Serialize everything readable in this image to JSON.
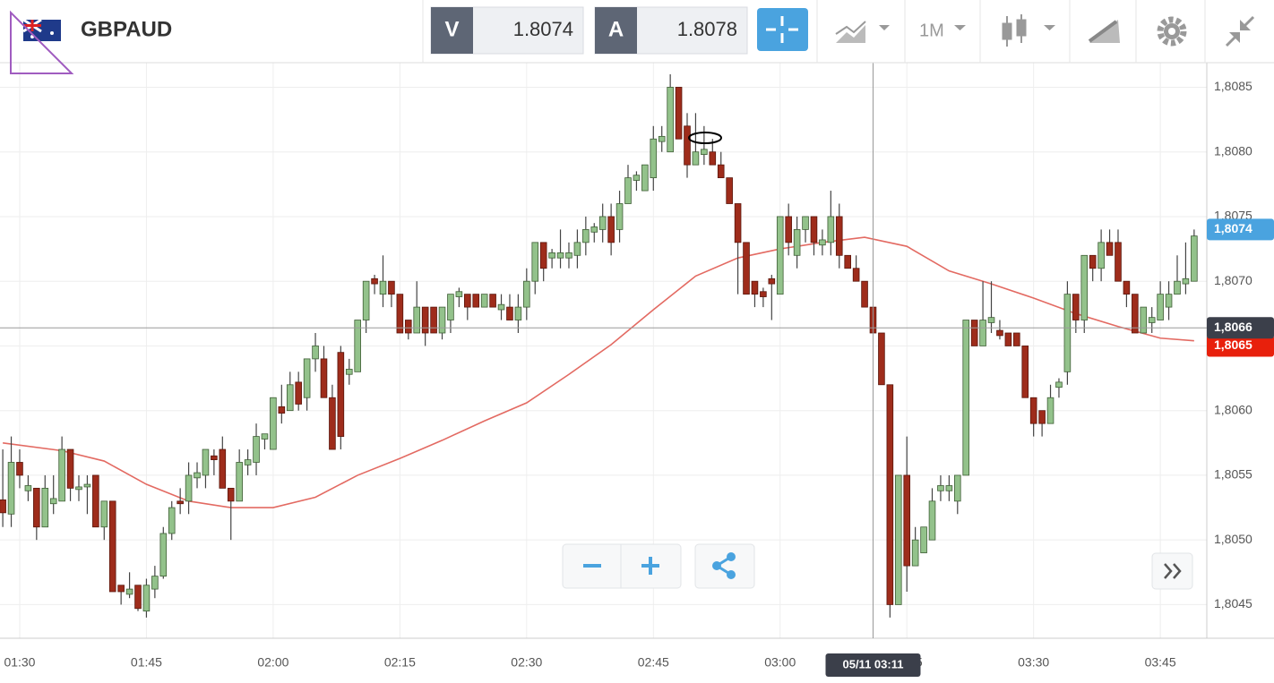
{
  "header": {
    "symbol": "GBPAUD",
    "bid_label": "V",
    "bid": 1.8074,
    "ask_label": "A",
    "ask": 1.8078,
    "timeframe": "1M"
  },
  "chart_data": {
    "type": "candlestick",
    "x": [
      88,
      89,
      90,
      91,
      92,
      93,
      94,
      95,
      96,
      97,
      98,
      99,
      100,
      101,
      102,
      103,
      104,
      105,
      106,
      107,
      108,
      109,
      110,
      111,
      112,
      113,
      114,
      115,
      116,
      117,
      118,
      119,
      120,
      121,
      122,
      123,
      124,
      125,
      126,
      127,
      128,
      129,
      130,
      131,
      132,
      133,
      134,
      135,
      136,
      137,
      138,
      139,
      140,
      141,
      142,
      143,
      144,
      145,
      146,
      147,
      148,
      149,
      150,
      151,
      152,
      153,
      154,
      155,
      156,
      157,
      158,
      159,
      160,
      161,
      162,
      163,
      164,
      165,
      166,
      167,
      168,
      169,
      170,
      171,
      172,
      173,
      174,
      175,
      176,
      177,
      178,
      179,
      180,
      181,
      182,
      183,
      184,
      185,
      186,
      187,
      188,
      189,
      190,
      191,
      192,
      193,
      194,
      195,
      196,
      197,
      198,
      199,
      200,
      201,
      202,
      203,
      204,
      205,
      206,
      207,
      208,
      209,
      210,
      211,
      212,
      213,
      214,
      215,
      216,
      217,
      218,
      219,
      220,
      221,
      222,
      223,
      224,
      225,
      226,
      227,
      228,
      229
    ],
    "open": [
      1.80531,
      1.8052,
      1.8056,
      1.80538,
      1.8054,
      1.8051,
      1.80528,
      1.8053,
      1.8057,
      1.80539,
      1.80541,
      1.8055,
      1.8051,
      1.8053,
      1.80465,
      1.80458,
      1.80465,
      1.80445,
      1.80462,
      1.80472,
      1.80505,
      1.8053,
      1.8053,
      1.80548,
      1.8055,
      1.80565,
      1.8057,
      1.8054,
      1.8053,
      1.80558,
      1.8056,
      1.80578,
      1.8057,
      1.80603,
      1.806,
      1.80622,
      1.8061,
      1.8064,
      1.8064,
      1.8061,
      1.80645,
      1.80628,
      1.8063,
      1.8067,
      1.80702,
      1.8069,
      1.807,
      1.8069,
      1.8067,
      1.8066,
      1.8068,
      1.8068,
      1.8066,
      1.8067,
      1.80688,
      1.8069,
      1.8069,
      1.8068,
      1.8069,
      1.80678,
      1.8068,
      1.8067,
      1.8068,
      1.807,
      1.8073,
      1.80718,
      1.80718,
      1.80718,
      1.8072,
      1.8073,
      1.80738,
      1.8074,
      1.8075,
      1.8074,
      1.8076,
      1.80778,
      1.8077,
      1.8078,
      1.80808,
      1.808,
      1.8085,
      1.8082,
      1.8079,
      1.80798,
      1.808,
      1.8079,
      1.8078,
      1.8076,
      1.8073,
      1.807,
      1.80692,
      1.80702,
      1.8069,
      1.8075,
      1.8072,
      1.8074,
      1.8075,
      1.80728,
      1.8073,
      1.8075,
      1.8072,
      1.8071,
      1.807,
      1.8068,
      1.8066,
      1.8062,
      1.8045,
      1.8055,
      1.8048,
      1.8049,
      1.805,
      1.80538,
      1.80538,
      1.8053,
      1.8055,
      1.8067,
      1.8065,
      1.80668,
      1.80662,
      1.8066,
      1.8066,
      1.8065,
      1.8061,
      1.806,
      1.8059,
      1.80618,
      1.8063,
      1.8069,
      1.8067,
      1.8072,
      1.8071,
      1.8073,
      1.8073,
      1.807,
      1.8069,
      1.8066,
      1.80668,
      1.8067,
      1.8068,
      1.8069,
      1.80698,
      1.807
    ],
    "high": [
      1.8057,
      1.8058,
      1.8057,
      1.8055,
      1.8054,
      1.8055,
      1.8055,
      1.8058,
      1.8057,
      1.8055,
      1.8055,
      1.8055,
      1.8053,
      1.8053,
      1.80465,
      1.80475,
      1.80465,
      1.8047,
      1.8048,
      1.8051,
      1.8053,
      1.8054,
      1.8056,
      1.8056,
      1.8057,
      1.8057,
      1.8058,
      1.8054,
      1.8057,
      1.8057,
      1.8059,
      1.8058,
      1.8061,
      1.8062,
      1.8063,
      1.8063,
      1.8064,
      1.8066,
      1.8065,
      1.8062,
      1.8065,
      1.8064,
      1.8067,
      1.807,
      1.80705,
      1.8072,
      1.807,
      1.8069,
      1.8067,
      1.807,
      1.8068,
      1.8068,
      1.8068,
      1.8069,
      1.80695,
      1.8069,
      1.8069,
      1.8069,
      1.8069,
      1.8069,
      1.8069,
      1.8069,
      1.8071,
      1.8073,
      1.8073,
      1.80725,
      1.8074,
      1.8073,
      1.8074,
      1.8075,
      1.80745,
      1.8076,
      1.8076,
      1.8077,
      1.8079,
      1.80785,
      1.8079,
      1.8082,
      1.8082,
      1.8086,
      1.8085,
      1.8083,
      1.8083,
      1.8082,
      1.8081,
      1.808,
      1.8078,
      1.8076,
      1.8073,
      1.807,
      1.80695,
      1.80705,
      1.8075,
      1.8076,
      1.8075,
      1.8075,
      1.8075,
      1.8074,
      1.8077,
      1.8076,
      1.8072,
      1.8072,
      1.807,
      1.8068,
      1.8066,
      1.8062,
      1.8055,
      1.8058,
      1.8051,
      1.8051,
      1.8054,
      1.8055,
      1.8055,
      1.8055,
      1.8067,
      1.8067,
      1.807,
      1.807,
      1.8067,
      1.8066,
      1.8066,
      1.8065,
      1.8061,
      1.806,
      1.8062,
      1.80625,
      1.807,
      1.8069,
      1.8072,
      1.8072,
      1.8074,
      1.8074,
      1.8074,
      1.807,
      1.8069,
      1.8068,
      1.8068,
      1.807,
      1.807,
      1.8072,
      1.8073,
      1.8074
    ],
    "low": [
      1.8051,
      1.8051,
      1.8054,
      1.8053,
      1.805,
      1.8051,
      1.8052,
      1.8053,
      1.8053,
      1.8053,
      1.8052,
      1.8051,
      1.805,
      1.8046,
      1.8045,
      1.80455,
      1.80445,
      1.8044,
      1.80455,
      1.8047,
      1.805,
      1.8052,
      1.8052,
      1.8054,
      1.8054,
      1.8055,
      1.8054,
      1.805,
      1.8053,
      1.8055,
      1.8055,
      1.8057,
      1.8057,
      1.8059,
      1.806,
      1.806,
      1.806,
      1.8063,
      1.8061,
      1.8057,
      1.8057,
      1.8062,
      1.8063,
      1.8066,
      1.8069,
      1.8068,
      1.8068,
      1.8066,
      1.80655,
      1.8066,
      1.8065,
      1.8066,
      1.80655,
      1.8066,
      1.8068,
      1.8067,
      1.8068,
      1.8068,
      1.8068,
      1.8067,
      1.8067,
      1.8066,
      1.8067,
      1.8069,
      1.807,
      1.8071,
      1.8071,
      1.8071,
      1.8071,
      1.8072,
      1.8073,
      1.8073,
      1.8072,
      1.8073,
      1.8076,
      1.8077,
      1.8077,
      1.8077,
      1.808,
      1.808,
      1.8081,
      1.8078,
      1.8079,
      1.8079,
      1.8079,
      1.8078,
      1.8076,
      1.8069,
      1.8069,
      1.8068,
      1.8068,
      1.8067,
      1.8069,
      1.8072,
      1.8071,
      1.8073,
      1.8072,
      1.8072,
      1.8072,
      1.8071,
      1.8071,
      1.807,
      1.8068,
      1.8066,
      1.8062,
      1.8044,
      1.8045,
      1.8046,
      1.8048,
      1.8049,
      1.805,
      1.8053,
      1.8053,
      1.8052,
      1.8055,
      1.8065,
      1.8065,
      1.8066,
      1.80655,
      1.8065,
      1.8065,
      1.8061,
      1.8058,
      1.8058,
      1.8059,
      1.8061,
      1.8062,
      1.8066,
      1.8066,
      1.807,
      1.807,
      1.8072,
      1.807,
      1.8068,
      1.8066,
      1.8066,
      1.8066,
      1.8067,
      1.8067,
      1.8069,
      1.8069,
      1.807
    ],
    "close": [
      1.80521,
      1.8056,
      1.8055,
      1.80542,
      1.8051,
      1.8054,
      1.80532,
      1.8057,
      1.8054,
      1.80541,
      1.80543,
      1.8051,
      1.8053,
      1.8046,
      1.8046,
      1.80462,
      1.80447,
      1.80465,
      1.80472,
      1.80505,
      1.80525,
      1.80528,
      1.8055,
      1.80552,
      1.8057,
      1.80562,
      1.8054,
      1.8053,
      1.8056,
      1.80562,
      1.8058,
      1.80582,
      1.8061,
      1.80598,
      1.8062,
      1.80605,
      1.8064,
      1.8065,
      1.8061,
      1.8057,
      1.8058,
      1.80632,
      1.8067,
      1.807,
      1.80698,
      1.807,
      1.8069,
      1.8066,
      1.8066,
      1.8068,
      1.8066,
      1.8066,
      1.8068,
      1.8069,
      1.80692,
      1.8068,
      1.8068,
      1.8069,
      1.8068,
      1.80682,
      1.8067,
      1.8068,
      1.807,
      1.8073,
      1.8071,
      1.80722,
      1.80722,
      1.80722,
      1.8073,
      1.8074,
      1.80742,
      1.8075,
      1.8073,
      1.8076,
      1.8078,
      1.80782,
      1.8079,
      1.8081,
      1.80812,
      1.8085,
      1.8081,
      1.8079,
      1.808,
      1.80802,
      1.8079,
      1.8078,
      1.8076,
      1.8073,
      1.8069,
      1.8069,
      1.80688,
      1.80698,
      1.8075,
      1.8073,
      1.8074,
      1.8075,
      1.8073,
      1.80732,
      1.8075,
      1.8072,
      1.8071,
      1.807,
      1.8068,
      1.8066,
      1.8062,
      1.8045,
      1.8055,
      1.8048,
      1.805,
      1.8051,
      1.8053,
      1.80542,
      1.80542,
      1.8055,
      1.8067,
      1.8065,
      1.8067,
      1.80672,
      1.80658,
      1.8065,
      1.8065,
      1.8061,
      1.8059,
      1.8059,
      1.8061,
      1.80622,
      1.8069,
      1.8067,
      1.8072,
      1.8071,
      1.8073,
      1.8072,
      1.807,
      1.8069,
      1.8066,
      1.8068,
      1.80672,
      1.8069,
      1.8069,
      1.807,
      1.80702,
      1.80735
    ],
    "up_color": "#93c28b",
    "down_color": "#9e2c1b",
    "xlim": [
      87.67,
      230.5
    ],
    "ylim": [
      1.80424,
      1.80869
    ],
    "xticks": [
      {
        "value": 90,
        "label": "01:30"
      },
      {
        "value": 105,
        "label": "01:45"
      },
      {
        "value": 120,
        "label": "02:00"
      },
      {
        "value": 135,
        "label": "02:15"
      },
      {
        "value": 150,
        "label": "02:30"
      },
      {
        "value": 165,
        "label": "02:45"
      },
      {
        "value": 180,
        "label": "03:00"
      },
      {
        "value": 195,
        "label": "03:15"
      },
      {
        "value": 210,
        "label": "03:30"
      },
      {
        "value": 225,
        "label": "03:45"
      }
    ],
    "yticks": [
      {
        "value": 1.8045,
        "label": "1,8045"
      },
      {
        "value": 1.805,
        "label": "1,8050"
      },
      {
        "value": 1.8055,
        "label": "1,8055"
      },
      {
        "value": 1.806,
        "label": "1,8060"
      },
      {
        "value": 1.8065,
        "label": "1,8065"
      },
      {
        "value": 1.807,
        "label": "1,8070"
      },
      {
        "value": 1.8075,
        "label": "1,8075"
      },
      {
        "value": 1.808,
        "label": "1,8080"
      },
      {
        "value": 1.8085,
        "label": "1,8085"
      }
    ],
    "grid": true,
    "overlays": [
      {
        "type": "line",
        "color": "#e36a62",
        "x": [
          88,
          95,
          100,
          105,
          110,
          115,
          120,
          125,
          130,
          135,
          140,
          145,
          150,
          155,
          160,
          165,
          170,
          175,
          180,
          185,
          190,
          195,
          200,
          205,
          210,
          215,
          220,
          225,
          229
        ],
        "values": [
          1.80575,
          1.80569,
          1.80561,
          1.80543,
          1.8053,
          1.80525,
          1.80525,
          1.80533,
          1.8055,
          1.80563,
          1.80577,
          1.80592,
          1.80606,
          1.80628,
          1.80651,
          1.80678,
          1.80704,
          1.80718,
          1.80725,
          1.8073,
          1.80734,
          1.80727,
          1.80708,
          1.80698,
          1.80687,
          1.80675,
          1.80665,
          1.80656,
          1.80654
        ]
      }
    ],
    "price_labels": [
      {
        "value": 1.8074,
        "label": "1,8074",
        "color": "#4aa3df"
      },
      {
        "value": 1.8065,
        "label": "1,8065",
        "color": "#e8200c"
      }
    ],
    "crosshair": {
      "x": 191,
      "x_label": "05/11 03:11",
      "y": 1.80664,
      "y_label": "1,8066",
      "color": "#3b3f4a"
    }
  }
}
